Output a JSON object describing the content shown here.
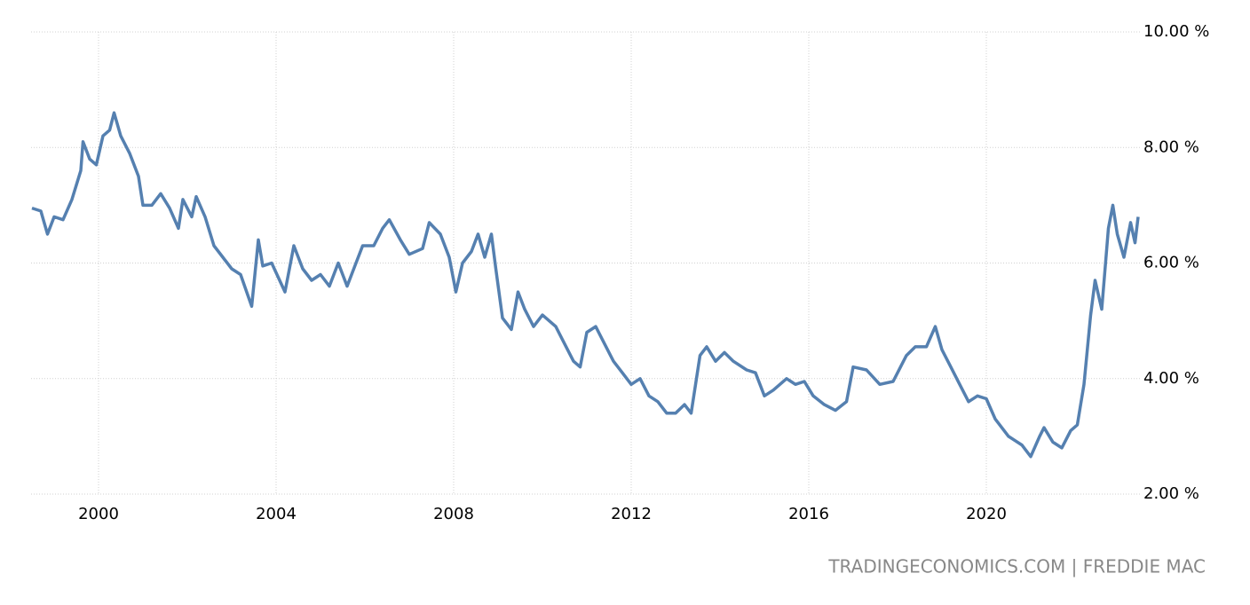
{
  "chart_data": {
    "type": "line",
    "source": "TRADINGECONOMICS.COM | FREDDIE MAC",
    "xlim": [
      1998.48,
      2023.48
    ],
    "xticks": [
      2000,
      2004,
      2008,
      2012,
      2016,
      2020
    ],
    "ylim": [
      2,
      10
    ],
    "yticks": [
      {
        "value": 10,
        "label": "10.00 %"
      },
      {
        "value": 8,
        "label": "8.00 %"
      },
      {
        "value": 6,
        "label": "6.00 %"
      },
      {
        "value": 4,
        "label": "4.00 %"
      },
      {
        "value": 2,
        "label": "2.00 %"
      }
    ],
    "grid": true,
    "x": [
      1998.5,
      1998.7,
      1998.85,
      1999.0,
      1999.2,
      1999.4,
      1999.6,
      1999.65,
      1999.8,
      1999.95,
      2000.1,
      2000.25,
      2000.35,
      2000.5,
      2000.7,
      2000.9,
      2001.0,
      2001.2,
      2001.4,
      2001.6,
      2001.8,
      2001.9,
      2002.1,
      2002.2,
      2002.4,
      2002.6,
      2002.8,
      2003.0,
      2003.2,
      2003.45,
      2003.6,
      2003.7,
      2003.9,
      2004.2,
      2004.4,
      2004.6,
      2004.8,
      2005.0,
      2005.2,
      2005.4,
      2005.6,
      2005.8,
      2005.95,
      2006.2,
      2006.4,
      2006.55,
      2006.8,
      2007.0,
      2007.3,
      2007.45,
      2007.7,
      2007.9,
      2008.05,
      2008.2,
      2008.4,
      2008.55,
      2008.7,
      2008.85,
      2008.95,
      2009.1,
      2009.3,
      2009.45,
      2009.6,
      2009.8,
      2010.0,
      2010.3,
      2010.5,
      2010.7,
      2010.85,
      2011.0,
      2011.2,
      2011.4,
      2011.6,
      2011.8,
      2012.0,
      2012.2,
      2012.4,
      2012.6,
      2012.8,
      2013.0,
      2013.2,
      2013.35,
      2013.55,
      2013.7,
      2013.9,
      2014.1,
      2014.3,
      2014.6,
      2014.8,
      2015.0,
      2015.2,
      2015.5,
      2015.7,
      2015.9,
      2016.1,
      2016.35,
      2016.6,
      2016.85,
      2017.0,
      2017.3,
      2017.6,
      2017.9,
      2018.2,
      2018.4,
      2018.65,
      2018.85,
      2019.0,
      2019.2,
      2019.4,
      2019.6,
      2019.8,
      2020.0,
      2020.2,
      2020.5,
      2020.8,
      2021.0,
      2021.2,
      2021.3,
      2021.5,
      2021.7,
      2021.9,
      2022.05,
      2022.2,
      2022.35,
      2022.45,
      2022.6,
      2022.75,
      2022.85,
      2022.95,
      2023.1,
      2023.25,
      2023.35,
      2023.42
    ],
    "series": [
      {
        "color": "#5580b0",
        "values": [
          6.95,
          6.9,
          6.5,
          6.8,
          6.75,
          7.1,
          7.6,
          8.1,
          7.8,
          7.7,
          8.2,
          8.3,
          8.6,
          8.2,
          7.9,
          7.5,
          7.0,
          7.0,
          7.2,
          6.95,
          6.6,
          7.1,
          6.8,
          7.15,
          6.8,
          6.3,
          6.1,
          5.9,
          5.8,
          5.25,
          6.4,
          5.95,
          6.0,
          5.5,
          6.3,
          5.9,
          5.7,
          5.8,
          5.6,
          6.0,
          5.6,
          6.0,
          6.3,
          6.3,
          6.6,
          6.75,
          6.4,
          6.15,
          6.25,
          6.7,
          6.5,
          6.1,
          5.5,
          6.0,
          6.2,
          6.5,
          6.1,
          6.5,
          5.9,
          5.05,
          4.85,
          5.5,
          5.2,
          4.9,
          5.1,
          4.9,
          4.6,
          4.3,
          4.2,
          4.8,
          4.9,
          4.6,
          4.3,
          4.1,
          3.9,
          4.0,
          3.7,
          3.6,
          3.4,
          3.4,
          3.55,
          3.4,
          4.4,
          4.55,
          4.3,
          4.45,
          4.3,
          4.15,
          4.1,
          3.7,
          3.8,
          4.0,
          3.9,
          3.95,
          3.7,
          3.55,
          3.45,
          3.6,
          4.2,
          4.15,
          3.9,
          3.95,
          4.4,
          4.55,
          4.55,
          4.9,
          4.5,
          4.2,
          3.9,
          3.6,
          3.7,
          3.65,
          3.3,
          3.0,
          2.85,
          2.65,
          3.0,
          3.15,
          2.9,
          2.8,
          3.1,
          3.2,
          3.9,
          5.1,
          5.7,
          5.2,
          6.6,
          7.0,
          6.5,
          6.1,
          6.7,
          6.35,
          6.8
        ]
      }
    ]
  }
}
